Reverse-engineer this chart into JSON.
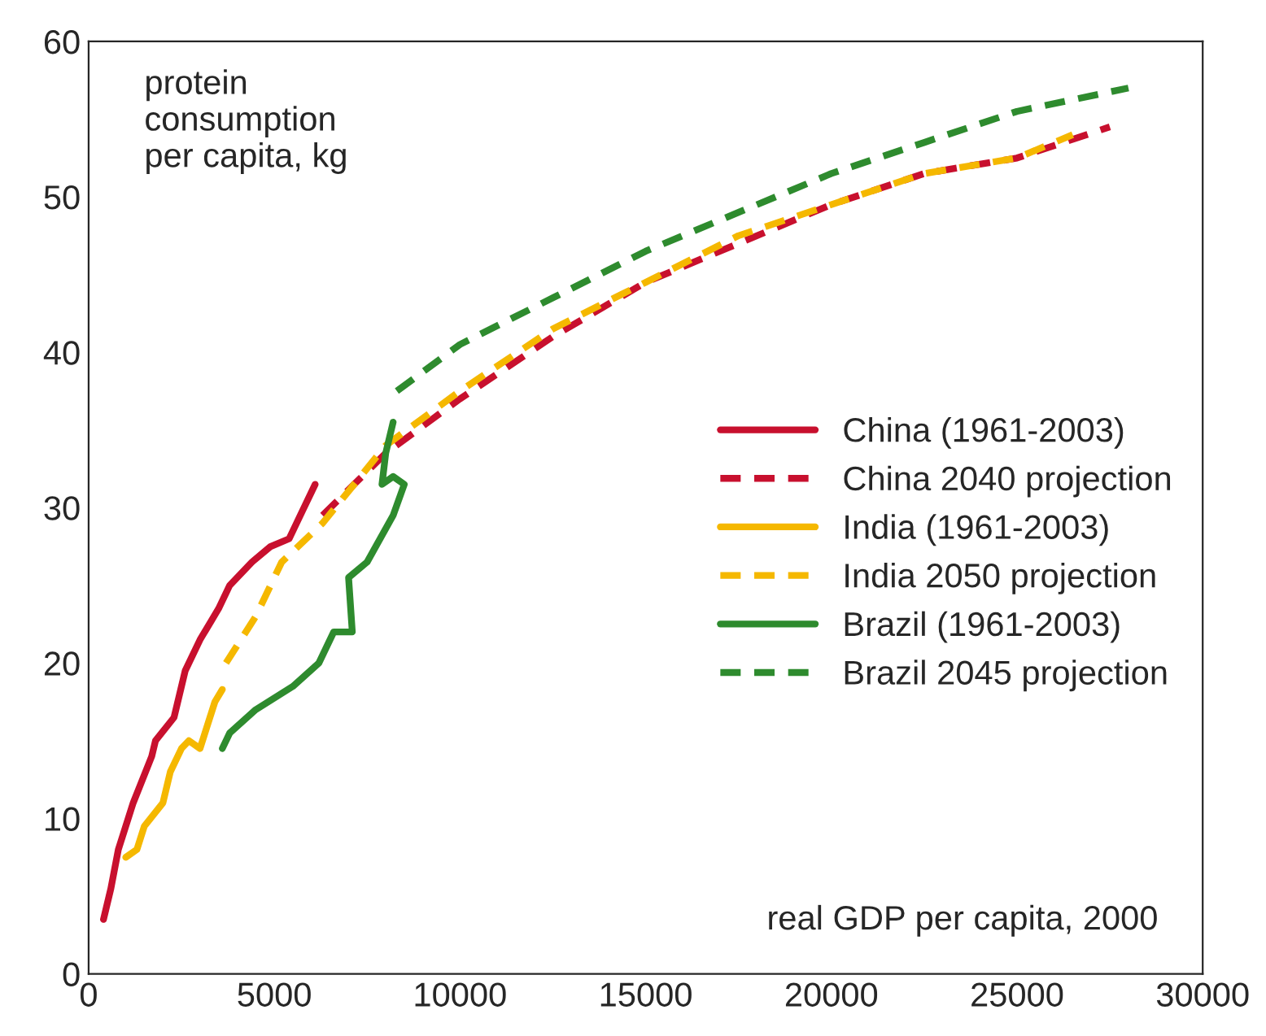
{
  "chart_data": {
    "type": "line",
    "ylabel": "protein\nconsumption\nper capita, kg",
    "xlabel": "real GDP per capita, 2000",
    "xlim": [
      0,
      30000
    ],
    "xticks": [
      0,
      5000,
      10000,
      15000,
      20000,
      25000,
      30000
    ],
    "ylim": [
      0,
      60
    ],
    "yticks": [
      0,
      10,
      20,
      30,
      40,
      50,
      60
    ],
    "grid": false,
    "legend": "right",
    "series": [
      {
        "name": "China (1961-2003)",
        "color": "#c8102e",
        "line_style": "solid",
        "x": [
          400,
          600,
          800,
          1200,
          1700,
          1800,
          2300,
          2600,
          3000,
          3500,
          3800,
          4400,
          4900,
          5400,
          5700,
          6100
        ],
        "values": [
          3.5,
          5.5,
          8,
          11,
          14,
          15,
          16.5,
          19.5,
          21.5,
          23.5,
          25,
          26.5,
          27.5,
          28,
          29.5,
          31.5
        ]
      },
      {
        "name": "China 2040 projection",
        "color": "#c8102e",
        "line_style": "dashed",
        "x": [
          6300,
          8000,
          10000,
          12500,
          15000,
          17500,
          20000,
          22500,
          25000,
          27500
        ],
        "values": [
          29.5,
          33.5,
          37,
          41,
          44.5,
          47,
          49.5,
          51.5,
          52.5,
          54.5
        ]
      },
      {
        "name": "India (1961-2003)",
        "color": "#f5b800",
        "line_style": "solid",
        "x": [
          1000,
          1300,
          1500,
          2000,
          2200,
          2500,
          2700,
          3000,
          3200,
          3400,
          3600
        ],
        "values": [
          7.5,
          8,
          9.5,
          11,
          13,
          14.5,
          15,
          14.5,
          16,
          17.5,
          18.3
        ]
      },
      {
        "name": "India 2050 projection",
        "color": "#f5b800",
        "line_style": "dashed",
        "x": [
          3700,
          4500,
          5200,
          6300,
          8000,
          10000,
          12500,
          15000,
          17500,
          20000,
          22500,
          25000,
          26500
        ],
        "values": [
          20,
          23,
          26.5,
          29,
          34,
          37.5,
          41.5,
          44.5,
          47.5,
          49.5,
          51.5,
          52.5,
          54
        ]
      },
      {
        "name": "Brazil (1961-2003)",
        "color": "#2e8b2e",
        "line_style": "solid",
        "x": [
          3600,
          3800,
          4500,
          5500,
          6200,
          6600,
          7100,
          7000,
          7500,
          8200,
          8500,
          8200,
          7900,
          8000,
          8200
        ],
        "values": [
          14.5,
          15.5,
          17,
          18.5,
          20,
          22,
          22,
          25.5,
          26.5,
          29.5,
          31.5,
          32,
          31.5,
          33.5,
          35.5
        ]
      },
      {
        "name": "Brazil 2045 projection",
        "color": "#2e8b2e",
        "line_style": "dashed",
        "x": [
          8300,
          10000,
          12500,
          15000,
          17500,
          20000,
          22500,
          25000,
          28000
        ],
        "values": [
          37.5,
          40.5,
          43.5,
          46.5,
          49,
          51.5,
          53.5,
          55.5,
          57
        ]
      }
    ]
  }
}
